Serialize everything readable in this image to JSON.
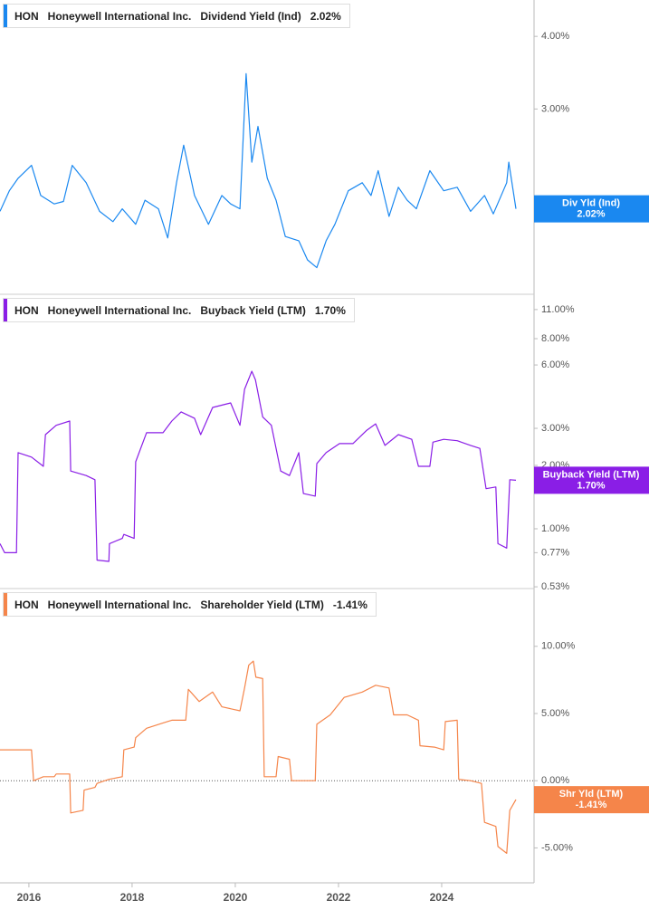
{
  "chart_data": [
    {
      "type": "line",
      "log_scale": true,
      "ticker": "HON",
      "company": "Honeywell International Inc.",
      "title": "Dividend Yield (Ind)",
      "last_value_label": "2.02%",
      "badge_label": "Div Yld (Ind)",
      "color": "#1a88f0",
      "x": [
        2015.44,
        2015.62,
        2015.79,
        2016.05,
        2016.23,
        2016.49,
        2016.67,
        2016.84,
        2017.11,
        2017.37,
        2017.63,
        2017.81,
        2018.07,
        2018.25,
        2018.51,
        2018.69,
        2018.86,
        2019.0,
        2019.21,
        2019.48,
        2019.74,
        2019.91,
        2020.09,
        2020.21,
        2020.32,
        2020.44,
        2020.62,
        2020.79,
        2020.97,
        2021.23,
        2021.4,
        2021.58,
        2021.76,
        2021.93,
        2022.19,
        2022.46,
        2022.63,
        2022.77,
        2022.98,
        2023.16,
        2023.33,
        2023.51,
        2023.77,
        2024.04,
        2024.3,
        2024.56,
        2024.83,
        2025.0,
        2025.26,
        2025.3,
        2025.44
      ],
      "values": [
        2.0,
        2.17,
        2.28,
        2.4,
        2.13,
        2.06,
        2.08,
        2.4,
        2.24,
        2.0,
        1.92,
        2.02,
        1.9,
        2.09,
        2.02,
        1.8,
        2.24,
        2.6,
        2.13,
        1.9,
        2.13,
        2.06,
        2.02,
        3.45,
        2.43,
        2.8,
        2.28,
        2.09,
        1.81,
        1.78,
        1.65,
        1.6,
        1.78,
        1.9,
        2.17,
        2.24,
        2.13,
        2.35,
        1.96,
        2.2,
        2.09,
        2.02,
        2.35,
        2.17,
        2.2,
        2.0,
        2.13,
        1.98,
        2.24,
        2.43,
        2.02
      ],
      "xlim": [
        2015.44,
        2025.79
      ],
      "ylim": [
        1.44,
        4.62
      ],
      "yticks": [
        {
          "value": 4,
          "label": "4.00%"
        },
        {
          "value": 3,
          "label": "3.00%"
        },
        {
          "value": 2,
          "label": "2.00%"
        }
      ]
    },
    {
      "type": "line",
      "log_scale": true,
      "ticker": "HON",
      "company": "Honeywell International Inc.",
      "title": "Buyback Yield (LTM)",
      "last_value_label": "1.70%",
      "badge_label": "Buyback Yield (LTM)",
      "color": "#8a1ee6",
      "x": [
        2015.44,
        2015.53,
        2015.76,
        2015.79,
        2016.05,
        2016.28,
        2016.32,
        2016.53,
        2016.79,
        2016.81,
        2017.11,
        2017.28,
        2017.32,
        2017.55,
        2017.56,
        2017.81,
        2017.84,
        2018.04,
        2018.07,
        2018.28,
        2018.6,
        2018.77,
        2018.95,
        2019.21,
        2019.33,
        2019.56,
        2019.91,
        2020.09,
        2020.18,
        2020.32,
        2020.39,
        2020.53,
        2020.7,
        2020.88,
        2021.05,
        2021.23,
        2021.32,
        2021.55,
        2021.58,
        2021.76,
        2022.02,
        2022.28,
        2022.55,
        2022.72,
        2022.9,
        2023.16,
        2023.42,
        2023.55,
        2023.77,
        2023.83,
        2024.04,
        2024.3,
        2024.56,
        2024.74,
        2024.86,
        2025.05,
        2025.09,
        2025.26,
        2025.32,
        2025.44
      ],
      "values": [
        0.85,
        0.77,
        0.77,
        2.3,
        2.19,
        1.98,
        2.8,
        3.1,
        3.25,
        1.88,
        1.79,
        1.71,
        0.71,
        0.7,
        0.85,
        0.9,
        0.94,
        0.9,
        2.08,
        2.86,
        2.86,
        3.25,
        3.59,
        3.35,
        2.8,
        3.77,
        3.96,
        3.1,
        4.6,
        5.6,
        5.1,
        3.4,
        3.1,
        1.88,
        1.79,
        2.3,
        1.47,
        1.43,
        2.04,
        2.3,
        2.54,
        2.54,
        2.94,
        3.15,
        2.49,
        2.8,
        2.66,
        1.98,
        1.98,
        2.58,
        2.66,
        2.62,
        2.49,
        2.41,
        1.55,
        1.58,
        0.85,
        0.81,
        1.71,
        1.7
      ],
      "xlim": [
        2015.44,
        2025.79
      ],
      "ylim": [
        0.52,
        13
      ],
      "yticks": [
        {
          "value": 11,
          "label": "11.00%"
        },
        {
          "value": 8,
          "label": "8.00%"
        },
        {
          "value": 6,
          "label": "6.00%"
        },
        {
          "value": 3,
          "label": "3.00%"
        },
        {
          "value": 2,
          "label": "2.00%"
        },
        {
          "value": 1,
          "label": "1.00%"
        },
        {
          "value": 0.77,
          "label": "0.77%"
        },
        {
          "value": 0.53,
          "label": "0.53%"
        }
      ]
    },
    {
      "type": "line",
      "log_scale": false,
      "zero_line": true,
      "ticker": "HON",
      "company": "Honeywell International Inc.",
      "title": "Shareholder Yield (LTM)",
      "last_value_label": "-1.41%",
      "badge_label": "Shr Yld (LTM)",
      "color": "#f5854a",
      "x": [
        2015.44,
        2016.05,
        2016.09,
        2016.28,
        2016.49,
        2016.53,
        2016.79,
        2016.81,
        2017.05,
        2017.07,
        2017.28,
        2017.32,
        2017.55,
        2017.81,
        2017.84,
        2018.04,
        2018.07,
        2018.28,
        2018.6,
        2018.77,
        2019.04,
        2019.09,
        2019.3,
        2019.56,
        2019.74,
        2020.09,
        2020.18,
        2020.26,
        2020.35,
        2020.4,
        2020.53,
        2020.56,
        2020.79,
        2020.83,
        2021.05,
        2021.09,
        2021.55,
        2021.58,
        2021.84,
        2022.11,
        2022.46,
        2022.72,
        2022.98,
        2023.07,
        2023.33,
        2023.55,
        2023.58,
        2023.86,
        2024.04,
        2024.07,
        2024.3,
        2024.33,
        2024.56,
        2024.77,
        2024.83,
        2025.05,
        2025.09,
        2025.26,
        2025.32,
        2025.44
      ],
      "values": [
        2.3,
        2.3,
        0,
        0.3,
        0.3,
        0.5,
        0.5,
        -2.4,
        -2.2,
        -0.7,
        -0.5,
        -0.2,
        0.1,
        0.3,
        2.3,
        2.5,
        3.2,
        3.9,
        4.3,
        4.5,
        4.5,
        6.8,
        5.9,
        6.6,
        5.5,
        5.2,
        6.9,
        8.6,
        8.9,
        7.7,
        7.6,
        0.3,
        0.3,
        1.8,
        1.6,
        0,
        0,
        4.2,
        4.9,
        6.2,
        6.6,
        7.1,
        6.9,
        4.9,
        4.9,
        4.5,
        2.6,
        2.5,
        2.3,
        4.4,
        4.5,
        0.1,
        0,
        -0.2,
        -3.1,
        -3.4,
        -4.9,
        -5.4,
        -2.2,
        -1.41
      ],
      "xlim": [
        2015.44,
        2025.79
      ],
      "ylim": [
        -7.6,
        14.3
      ],
      "yticks": [
        {
          "value": 10,
          "label": "10.00%"
        },
        {
          "value": 5,
          "label": "5.00%"
        },
        {
          "value": 0,
          "label": "0.00%"
        },
        {
          "value": -5,
          "label": "-5.00%"
        }
      ],
      "xticks": [
        2016,
        2018,
        2020,
        2022,
        2024
      ]
    }
  ]
}
